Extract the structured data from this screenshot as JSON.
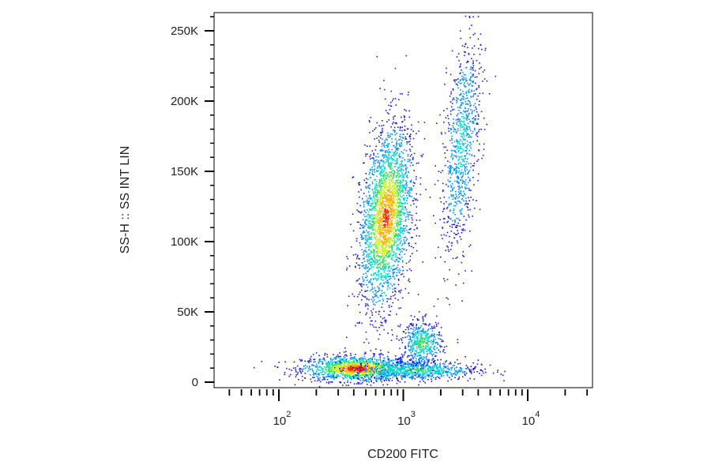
{
  "chart_data": {
    "type": "scatter",
    "xlabel": "CD200 FITC",
    "ylabel": "SS-H :: SS INT LIN",
    "x_scale": "log",
    "y_scale": "linear",
    "xlim": [
      28,
      3000
    ],
    "ylim": [
      -3000,
      255000
    ],
    "x_ticks": [
      {
        "value": 100,
        "base": "10",
        "exp": "2"
      },
      {
        "value": 1000,
        "base": "10",
        "exp": "3"
      },
      {
        "value": 10000,
        "base": "10",
        "exp": "4"
      }
    ],
    "y_ticks": [
      {
        "value": 0,
        "label": "0"
      },
      {
        "value": 50000,
        "label": "50K"
      },
      {
        "value": 100000,
        "label": "100K"
      },
      {
        "value": 150000,
        "label": "150K"
      },
      {
        "value": 200000,
        "label": "200K"
      },
      {
        "value": 250000,
        "label": "250K"
      }
    ],
    "grid": false,
    "legend": "none",
    "density_colors": [
      "#1a1ad6",
      "#0090ff",
      "#00d8d0",
      "#30e060",
      "#c8f020",
      "#ffb000",
      "#ff2000"
    ],
    "populations": [
      {
        "x_center": 420,
        "y_center": 10000,
        "x_spread_decades": 0.22,
        "y_spread": 4500,
        "count": 1400,
        "peak_density": 1.0
      },
      {
        "x_center": 1250,
        "y_center": 9000,
        "x_spread_decades": 0.25,
        "y_spread": 3500,
        "count": 700,
        "peak_density": 0.45
      },
      {
        "x_center": 720,
        "y_center": 118000,
        "x_spread_decades": 0.1,
        "y_spread": 32000,
        "count": 2600,
        "peak_density": 0.95
      },
      {
        "x_center": 1400,
        "y_center": 28000,
        "x_spread_decades": 0.08,
        "y_spread": 8000,
        "count": 500,
        "peak_density": 0.5
      },
      {
        "x_center": 2900,
        "y_center": 170000,
        "x_spread_decades": 0.07,
        "y_spread": 40000,
        "count": 900,
        "peak_density": 0.3
      }
    ]
  }
}
